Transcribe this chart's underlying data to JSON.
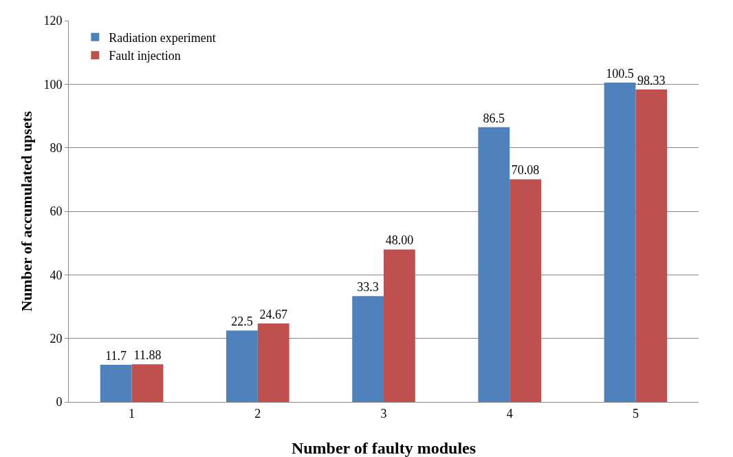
{
  "chart_data": {
    "type": "bar",
    "xlabel": "Number of faulty modules",
    "ylabel": "Number of accumulated upsets",
    "categories": [
      "1",
      "2",
      "3",
      "4",
      "5"
    ],
    "series": [
      {
        "name": "Radiation experiment",
        "color": "#4f81bd",
        "values": [
          11.7,
          22.5,
          33.3,
          86.5,
          100.5
        ],
        "value_labels": [
          "11.7",
          "22.5",
          "33.3",
          "86.5",
          "100.5"
        ]
      },
      {
        "name": "Fault injection",
        "color": "#c0504d",
        "values": [
          11.88,
          24.67,
          48.0,
          70.08,
          98.33
        ],
        "value_labels": [
          "11.88",
          "24.67",
          "48.00",
          "70.08",
          "98.33"
        ]
      }
    ],
    "ylim": [
      0,
      120
    ],
    "yticks": [
      0,
      20,
      40,
      60,
      80,
      100,
      120
    ],
    "grid": "y",
    "legend": "top left"
  }
}
